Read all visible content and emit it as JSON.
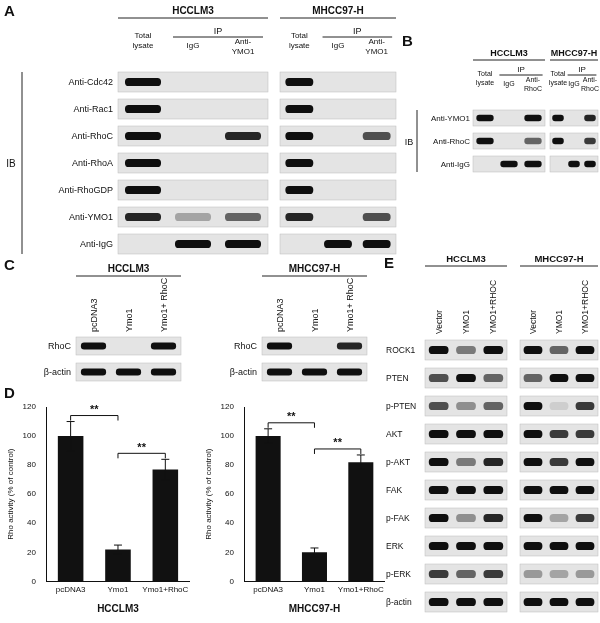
{
  "panels": {
    "A": {
      "label": "A",
      "cell_lines": [
        "HCCLM3",
        "MHCC97-H"
      ],
      "ip_label": "IP",
      "ib_label": "IB",
      "lanes": [
        "Total lysate",
        "IgG",
        "Anti-YMO1"
      ],
      "rows": [
        "Anti-Cdc42",
        "Anti-Rac1",
        "Anti-RhoC",
        "Anti-RhoA",
        "Anti-RhoGDP",
        "Anti-YMO1",
        "Anti-IgG"
      ]
    },
    "B": {
      "label": "B",
      "cell_lines": [
        "HCCLM3",
        "MHCC97-H"
      ],
      "ip_label": "IP",
      "ib_label": "IB",
      "lanes": [
        "Total lysate",
        "IgG",
        "Anti-RhoC"
      ],
      "rows": [
        "Anti-YMO1",
        "Anti-RhoC",
        "Anti-IgG"
      ]
    },
    "C": {
      "label": "C",
      "cell_lines": [
        "HCCLM3",
        "MHCC97-H"
      ],
      "lanes": [
        "pcDNA3",
        "Ymo1",
        "Ymo1+ RhoC"
      ],
      "rows": [
        "RhoC",
        "β-actin"
      ]
    },
    "D": {
      "label": "D"
    },
    "E": {
      "label": "E",
      "cell_lines": [
        "HCCLM3",
        "MHCC97-H"
      ],
      "lanes": [
        "Vector",
        "YMO1",
        "YMO1+RHOC"
      ],
      "rows": [
        "ROCK1",
        "PTEN",
        "p-PTEN",
        "AKT",
        "p-AKT",
        "FAK",
        "p-FAK",
        "ERK",
        "p-ERK",
        "β-actin"
      ]
    }
  },
  "chart_data": [
    {
      "type": "bar",
      "title": "HCCLM3",
      "categories": [
        "pcDNA3",
        "Ymo1",
        "Ymo1+RhoC"
      ],
      "values": [
        100,
        22,
        77
      ],
      "errors": [
        10,
        3,
        7
      ],
      "color": "#111111",
      "ylabel": "Rho activity (% of control)",
      "ylim": [
        0,
        120
      ],
      "yticks": [
        0,
        20,
        40,
        60,
        80,
        100,
        120
      ],
      "grid": false,
      "significance": [
        {
          "categories": [
            "pcDNA3",
            "Ymo1"
          ],
          "label": "**"
        },
        {
          "categories": [
            "Ymo1",
            "Ymo1+RhoC"
          ],
          "label": "**"
        }
      ]
    },
    {
      "type": "bar",
      "title": "MHCC97-H",
      "categories": [
        "pcDNA3",
        "Ymo1",
        "Ymo1+RhoC"
      ],
      "values": [
        100,
        20,
        82
      ],
      "errors": [
        5,
        3,
        5
      ],
      "color": "#111111",
      "ylabel": "Rho activity (% of control)",
      "ylim": [
        0,
        120
      ],
      "yticks": [
        0,
        20,
        40,
        60,
        80,
        100,
        120
      ],
      "grid": false,
      "significance": [
        {
          "categories": [
            "pcDNA3",
            "Ymo1"
          ],
          "label": "**"
        },
        {
          "categories": [
            "Ymo1",
            "Ymo1+RhoC"
          ],
          "label": "**"
        }
      ]
    }
  ]
}
